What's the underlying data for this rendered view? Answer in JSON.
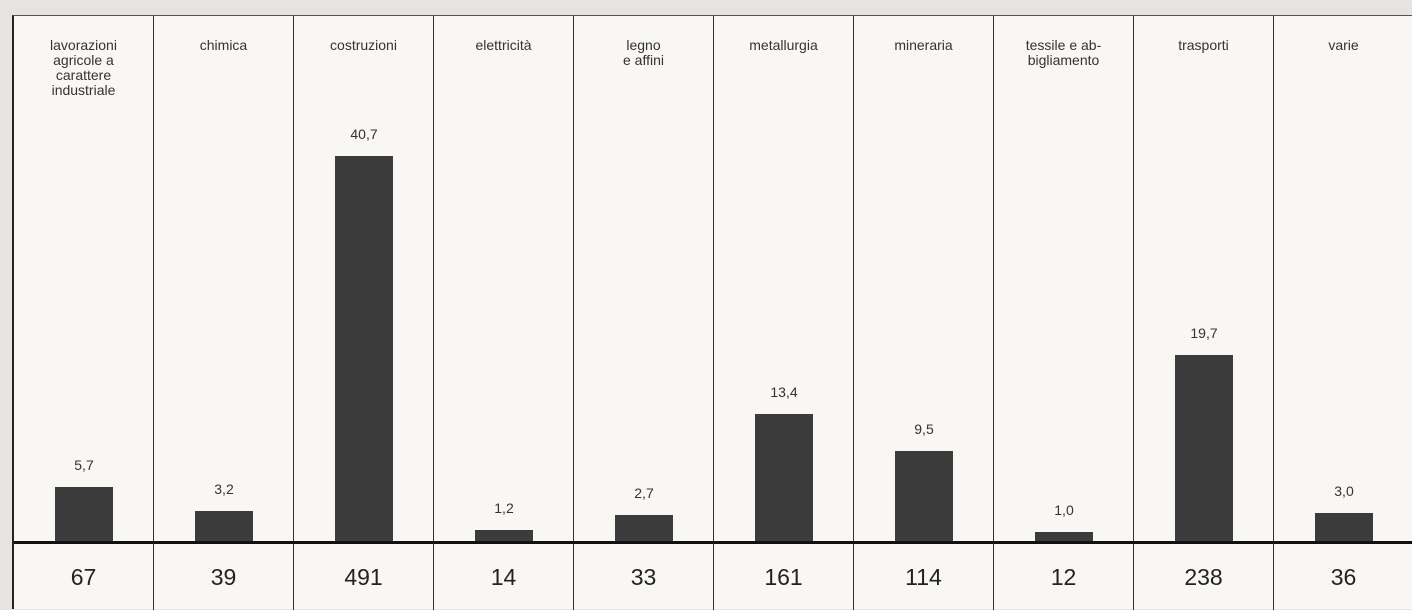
{
  "chart_data": {
    "type": "bar",
    "categories": [
      "lavorazioni\nagricole a\ncarattere\nindustriale",
      "chimica",
      "costruzioni",
      "elettricità",
      "legno\ne affini",
      "metallurgia",
      "mineraria",
      "tessile e ab-\nbigliamento",
      "trasporti",
      "varie"
    ],
    "values": [
      5.7,
      3.2,
      40.7,
      1.2,
      2.7,
      13.4,
      9.5,
      1.0,
      19.7,
      3.0
    ],
    "value_labels": [
      "5,7",
      "3,2",
      "40,7",
      "1,2",
      "2,7",
      "13,4",
      "9,5",
      "1,0",
      "19,7",
      "3,0"
    ],
    "counts": [
      67,
      39,
      491,
      14,
      33,
      161,
      114,
      12,
      238,
      36
    ],
    "color": "#3b3b3b"
  }
}
